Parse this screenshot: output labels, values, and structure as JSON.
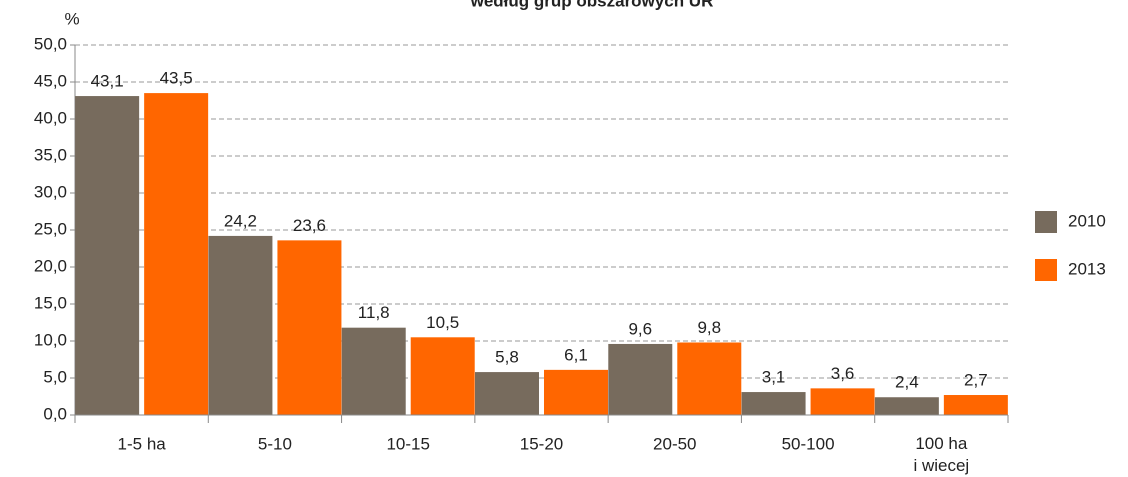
{
  "chart_data": {
    "type": "bar",
    "title": "według grup obszarowych UR",
    "y_axis_label": "%",
    "categories": [
      "1-5 ha",
      "5-10",
      "10-15",
      "15-20",
      "20-50",
      "50-100",
      "100 ha\ni wiecej"
    ],
    "series": [
      {
        "name": "2010",
        "color": "#776b5d",
        "values": [
          43.1,
          24.2,
          11.8,
          5.8,
          9.6,
          3.1,
          2.4
        ],
        "value_labels": [
          "43,1",
          "24,2",
          "11,8",
          "5,8",
          "9,6",
          "3,1",
          "2,4"
        ]
      },
      {
        "name": "2013",
        "color": "#ff6600",
        "values": [
          43.5,
          23.6,
          10.5,
          6.1,
          9.8,
          3.6,
          2.7
        ],
        "value_labels": [
          "43,5",
          "23,6",
          "10,5",
          "6,1",
          "9,8",
          "3,6",
          "2,7"
        ]
      }
    ],
    "ylim": [
      0,
      50
    ],
    "yticks": [
      {
        "value": 0,
        "label": "0,0"
      },
      {
        "value": 5,
        "label": "5,0"
      },
      {
        "value": 10,
        "label": "10,0"
      },
      {
        "value": 15,
        "label": "15,0"
      },
      {
        "value": 20,
        "label": "20,0"
      },
      {
        "value": 25,
        "label": "25,0"
      },
      {
        "value": 30,
        "label": "30,0"
      },
      {
        "value": 35,
        "label": "35,0"
      },
      {
        "value": 40,
        "label": "40,0"
      },
      {
        "value": 45,
        "label": "45,0"
      },
      {
        "value": 50,
        "label": "50,0"
      }
    ],
    "grid": true,
    "legend": "right"
  }
}
